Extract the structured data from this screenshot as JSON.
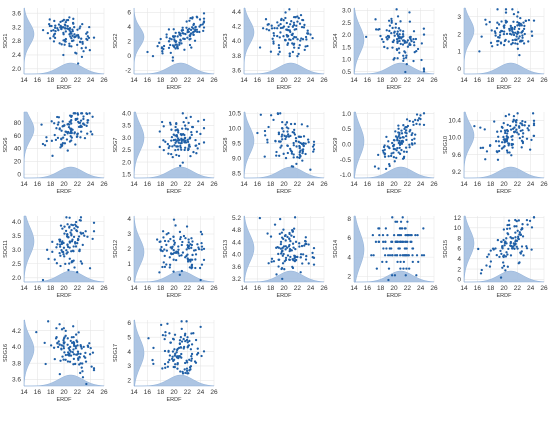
{
  "colors": {
    "points": "#1f5fa6",
    "kde": "#a9c2e2",
    "grid": "#e6e6e6"
  },
  "chart_data": [
    {
      "type": "scatter",
      "xlabel": "ERDF",
      "ylabel": "SDG1",
      "xticks": [
        "14",
        "16",
        "18",
        "20",
        "22",
        "24",
        "26"
      ],
      "yticks": [
        "2.0",
        "2.4",
        "2.8",
        "3.2",
        "3.6"
      ],
      "xlim": [
        14,
        26
      ],
      "ylim": [
        1.85,
        3.75
      ],
      "center": [
        21,
        3.0
      ],
      "spread": [
        1.8,
        0.28
      ],
      "seed": 1,
      "corr": -0.5
    },
    {
      "type": "scatter",
      "xlabel": "ERDF",
      "ylabel": "SDG2",
      "xticks": [
        "14",
        "16",
        "18",
        "20",
        "22",
        "24",
        "26"
      ],
      "yticks": [
        "-2",
        "0",
        "2",
        "4",
        "6"
      ],
      "xlim": [
        14,
        26
      ],
      "ylim": [
        -2.5,
        6.6
      ],
      "center": [
        21,
        2.6
      ],
      "spread": [
        1.8,
        1.2
      ],
      "seed": 2,
      "corr": 0.7
    },
    {
      "type": "scatter",
      "xlabel": "ERDF",
      "ylabel": "SDG3",
      "xticks": [
        "14",
        "16",
        "18",
        "20",
        "22",
        "24",
        "26"
      ],
      "yticks": [
        "3.6",
        "3.8",
        "4.0",
        "4.2",
        "4.4"
      ],
      "xlim": [
        14,
        26
      ],
      "ylim": [
        3.55,
        4.45
      ],
      "center": [
        21,
        4.12
      ],
      "spread": [
        1.8,
        0.14
      ],
      "seed": 3,
      "corr": 0.0
    },
    {
      "type": "scatter",
      "xlabel": "ERDF",
      "ylabel": "SDG4",
      "xticks": [
        "14",
        "16",
        "18",
        "20",
        "22",
        "24",
        "26"
      ],
      "yticks": [
        "0.5",
        "1.0",
        "1.5",
        "2.0",
        "2.5",
        "3.0"
      ],
      "xlim": [
        14,
        26
      ],
      "ylim": [
        0.4,
        3.1
      ],
      "center": [
        21,
        1.8
      ],
      "spread": [
        1.8,
        0.5
      ],
      "seed": 4,
      "corr": -0.4
    },
    {
      "type": "scatter",
      "xlabel": "ERDF",
      "ylabel": "SDG5",
      "xticks": [
        "14",
        "16",
        "18",
        "20",
        "22",
        "24",
        "26"
      ],
      "yticks": [
        "0",
        "1",
        "2",
        "3"
      ],
      "xlim": [
        14,
        26
      ],
      "ylim": [
        -0.3,
        3.5
      ],
      "center": [
        21,
        2.2
      ],
      "spread": [
        1.8,
        0.6
      ],
      "seed": 5,
      "corr": 0.1
    },
    {
      "type": "scatter",
      "xlabel": "ERDF",
      "ylabel": "SDG6",
      "xticks": [
        "14",
        "16",
        "18",
        "20",
        "22",
        "24",
        "26"
      ],
      "yticks": [
        "0",
        "20",
        "40",
        "60",
        "80"
      ],
      "xlim": [
        14,
        26
      ],
      "ylim": [
        -6,
        97
      ],
      "center": [
        21,
        70
      ],
      "spread": [
        1.8,
        16
      ],
      "seed": 6,
      "corr": 0.5
    },
    {
      "type": "scatter",
      "xlabel": "ERDF",
      "ylabel": "SDG7",
      "xticks": [
        "14",
        "16",
        "18",
        "20",
        "22",
        "24",
        "26"
      ],
      "yticks": [
        "1.5",
        "2.0",
        "2.5",
        "3.0",
        "3.5",
        "4.0"
      ],
      "xlim": [
        14,
        26
      ],
      "ylim": [
        1.35,
        4.05
      ],
      "center": [
        21,
        3.0
      ],
      "spread": [
        1.8,
        0.5
      ],
      "seed": 7,
      "corr": 0.2
    },
    {
      "type": "scatter",
      "xlabel": "ERDF",
      "ylabel": "SDG8",
      "xticks": [
        "14",
        "16",
        "18",
        "20",
        "22",
        "24",
        "26"
      ],
      "yticks": [
        "8.5",
        "9.0",
        "9.5",
        "10.0",
        "10.5"
      ],
      "xlim": [
        14,
        26
      ],
      "ylim": [
        8.35,
        10.55
      ],
      "center": [
        21,
        9.6
      ],
      "spread": [
        1.8,
        0.4
      ],
      "seed": 8,
      "corr": -0.3
    },
    {
      "type": "scatter",
      "xlabel": "ERDF",
      "ylabel": "SDG9",
      "xticks": [
        "14",
        "16",
        "18",
        "20",
        "22",
        "24",
        "26"
      ],
      "yticks": [
        "-1.0",
        "-0.5",
        "0.0",
        "0.5",
        "1.0"
      ],
      "xlim": [
        14,
        26
      ],
      "ylim": [
        -1.1,
        1.05
      ],
      "center": [
        21,
        0.1
      ],
      "spread": [
        1.8,
        0.45
      ],
      "seed": 9,
      "corr": 0.8
    },
    {
      "type": "scatter",
      "xlabel": "ERDF",
      "ylabel": "SDG10",
      "xticks": [
        "14",
        "16",
        "18",
        "20",
        "22",
        "24",
        "26"
      ],
      "yticks": [
        "9.2",
        "9.6",
        "10.0",
        "10.4"
      ],
      "xlim": [
        14,
        26
      ],
      "ylim": [
        9.05,
        10.6
      ],
      "center": [
        21,
        10.05
      ],
      "spread": [
        1.8,
        0.25
      ],
      "seed": 10,
      "corr": 0.4
    },
    {
      "type": "scatter",
      "xlabel": "ERDF",
      "ylabel": "SDG11",
      "xticks": [
        "14",
        "16",
        "18",
        "20",
        "22",
        "24",
        "26"
      ],
      "yticks": [
        "2.0",
        "2.5",
        "3.0",
        "3.5",
        "4.0"
      ],
      "xlim": [
        14,
        26
      ],
      "ylim": [
        1.85,
        4.2
      ],
      "center": [
        21,
        3.3
      ],
      "spread": [
        1.8,
        0.45
      ],
      "seed": 11,
      "corr": 0.3
    },
    {
      "type": "scatter",
      "xlabel": "ERDF",
      "ylabel": "SDG12",
      "xticks": [
        "14",
        "16",
        "18",
        "20",
        "22",
        "24",
        "26"
      ],
      "yticks": [
        "0",
        "1",
        "2",
        "3",
        "4"
      ],
      "xlim": [
        14,
        26
      ],
      "ylim": [
        -0.2,
        4.2
      ],
      "center": [
        21,
        1.8
      ],
      "spread": [
        1.8,
        0.8
      ],
      "seed": 12,
      "corr": -0.2
    },
    {
      "type": "scatter",
      "xlabel": "ERDF",
      "ylabel": "SDG13",
      "xticks": [
        "14",
        "16",
        "18",
        "20",
        "22",
        "24",
        "26"
      ],
      "yticks": [
        "3.2",
        "3.6",
        "4.0",
        "4.4",
        "4.8",
        "5.2"
      ],
      "xlim": [
        14,
        26
      ],
      "ylim": [
        3.1,
        5.25
      ],
      "center": [
        21,
        4.2
      ],
      "spread": [
        1.8,
        0.4
      ],
      "seed": 13,
      "corr": -0.3
    },
    {
      "type": "scatter",
      "xlabel": "ERDF",
      "ylabel": "SDG14",
      "xticks": [
        "14",
        "16",
        "18",
        "20",
        "22",
        "24",
        "26"
      ],
      "yticks": [
        "2",
        "4",
        "6",
        "8"
      ],
      "xlim": [
        14,
        26
      ],
      "ylim": [
        1.4,
        8.3
      ],
      "center": [
        21,
        4.8
      ],
      "spread": [
        1.8,
        1.6
      ],
      "seed": 14,
      "corr": 0.0,
      "banded": true
    },
    {
      "type": "scatter",
      "xlabel": "ERDF",
      "ylabel": "SDG15",
      "xticks": [
        "14",
        "16",
        "18",
        "20",
        "22",
        "24",
        "26"
      ],
      "yticks": [
        "0",
        "2",
        "4",
        "6",
        "8",
        "10",
        "12"
      ],
      "xlim": [
        14,
        26
      ],
      "ylim": [
        -0.5,
        12.3
      ],
      "center": [
        21,
        7.0
      ],
      "spread": [
        1.8,
        2.4
      ],
      "seed": 15,
      "corr": 0.5
    },
    {
      "type": "scatter",
      "xlabel": "ERDF",
      "ylabel": "SDG16",
      "xticks": [
        "14",
        "16",
        "18",
        "20",
        "22",
        "24",
        "26"
      ],
      "yticks": [
        "3.6",
        "3.8",
        "4.0",
        "4.2"
      ],
      "xlim": [
        14,
        26
      ],
      "ylim": [
        3.52,
        4.33
      ],
      "center": [
        21,
        3.97
      ],
      "spread": [
        1.8,
        0.14
      ],
      "seed": 16,
      "corr": -0.4
    },
    {
      "type": "scatter",
      "xlabel": "ERDF",
      "ylabel": "SDG17",
      "xticks": [
        "14",
        "16",
        "18",
        "20",
        "22",
        "24",
        "26"
      ],
      "yticks": [
        "2",
        "3",
        "4",
        "5",
        "6"
      ],
      "xlim": [
        14,
        26
      ],
      "ylim": [
        1.6,
        6.2
      ],
      "center": [
        21,
        3.9
      ],
      "spread": [
        1.8,
        0.9
      ],
      "seed": 17,
      "corr": -0.1
    }
  ]
}
